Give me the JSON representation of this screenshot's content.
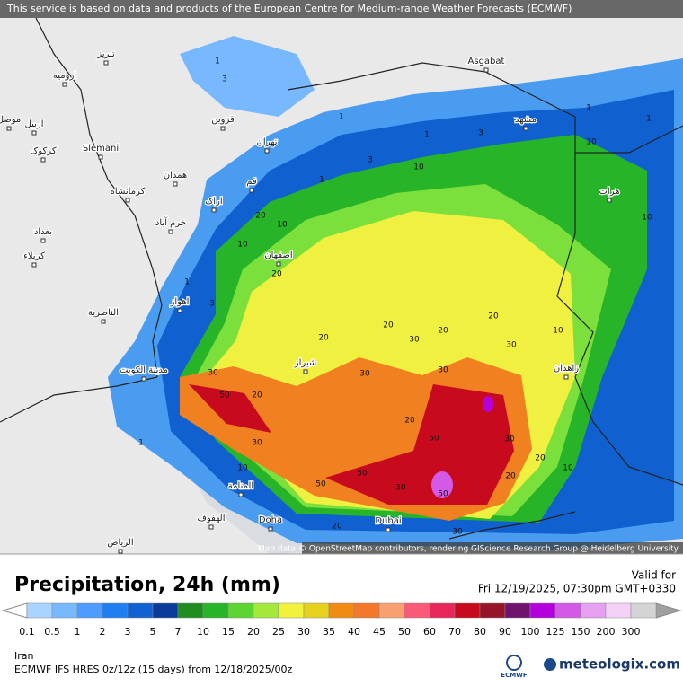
{
  "header": {
    "notice": "This service is based on data and products of the European Centre for Medium-range Weather Forecasts (ECMWF)"
  },
  "map": {
    "attribution": "Map data © OpenStreetMap contributors, rendering GIScience Research Group @ Heidelberg University",
    "places": [
      "تبریز",
      "ارومیه",
      "موصل",
      "اربیل",
      "کرکوک",
      "Slemani",
      "همدان",
      "کرمانشاه",
      "اراک",
      "خرم آباد",
      "بغداد",
      "کربلاء",
      "قزوین",
      "تهران",
      "قم",
      "اصفهان",
      "اهواز",
      "الناصرية",
      "شیراز",
      "مدينة الكويت",
      "Asgabat",
      "مشهد",
      "هرات",
      "زاهدان",
      "المنامة",
      "الهفوف",
      "Doha",
      "Dubai",
      "الرياض"
    ],
    "contour_labels": [
      1,
      3,
      1,
      3,
      1,
      10,
      1,
      3,
      10,
      1,
      10,
      20,
      10,
      1,
      3,
      20,
      20,
      20,
      30,
      20,
      30,
      20,
      10,
      30,
      50,
      20,
      30,
      30,
      20,
      30,
      50,
      30,
      20,
      20,
      10,
      50,
      50,
      30,
      50,
      20,
      30,
      1,
      10,
      1,
      10
    ]
  },
  "footer": {
    "title": "Precipitation, 24h (mm)",
    "valid_label": "Valid for",
    "valid_time": "Fri 12/19/2025, 07:30pm GMT+0330",
    "region": "Iran",
    "model": "ECMWF IFS HRES 0z/12z (15 days) from 12/18/2025/00z",
    "ecmwf_logo": "ECMWF",
    "brand": "meteologix.com"
  },
  "legend": {
    "levels": [
      0.1,
      0.5,
      1,
      2,
      3,
      5,
      7,
      10,
      15,
      20,
      25,
      30,
      35,
      40,
      45,
      50,
      60,
      70,
      80,
      90,
      100,
      125,
      150,
      200,
      300
    ],
    "under_color": "#ffffff",
    "colors": [
      "#a8d4ff",
      "#78b8ff",
      "#4e9cff",
      "#1f7ff0",
      "#1060d0",
      "#0a3a9a",
      "#1e8c1e",
      "#28b428",
      "#5cd432",
      "#a4e83c",
      "#f2f23c",
      "#e6d21e",
      "#f08c14",
      "#f4782a",
      "#f8a070",
      "#f85a78",
      "#e8285a",
      "#c80a1e",
      "#961428",
      "#6e146e",
      "#b400dc",
      "#d25ae6",
      "#e6a0f0",
      "#f4d2f8",
      "#d4d4d4"
    ],
    "over_color": "#a0a0a0"
  }
}
